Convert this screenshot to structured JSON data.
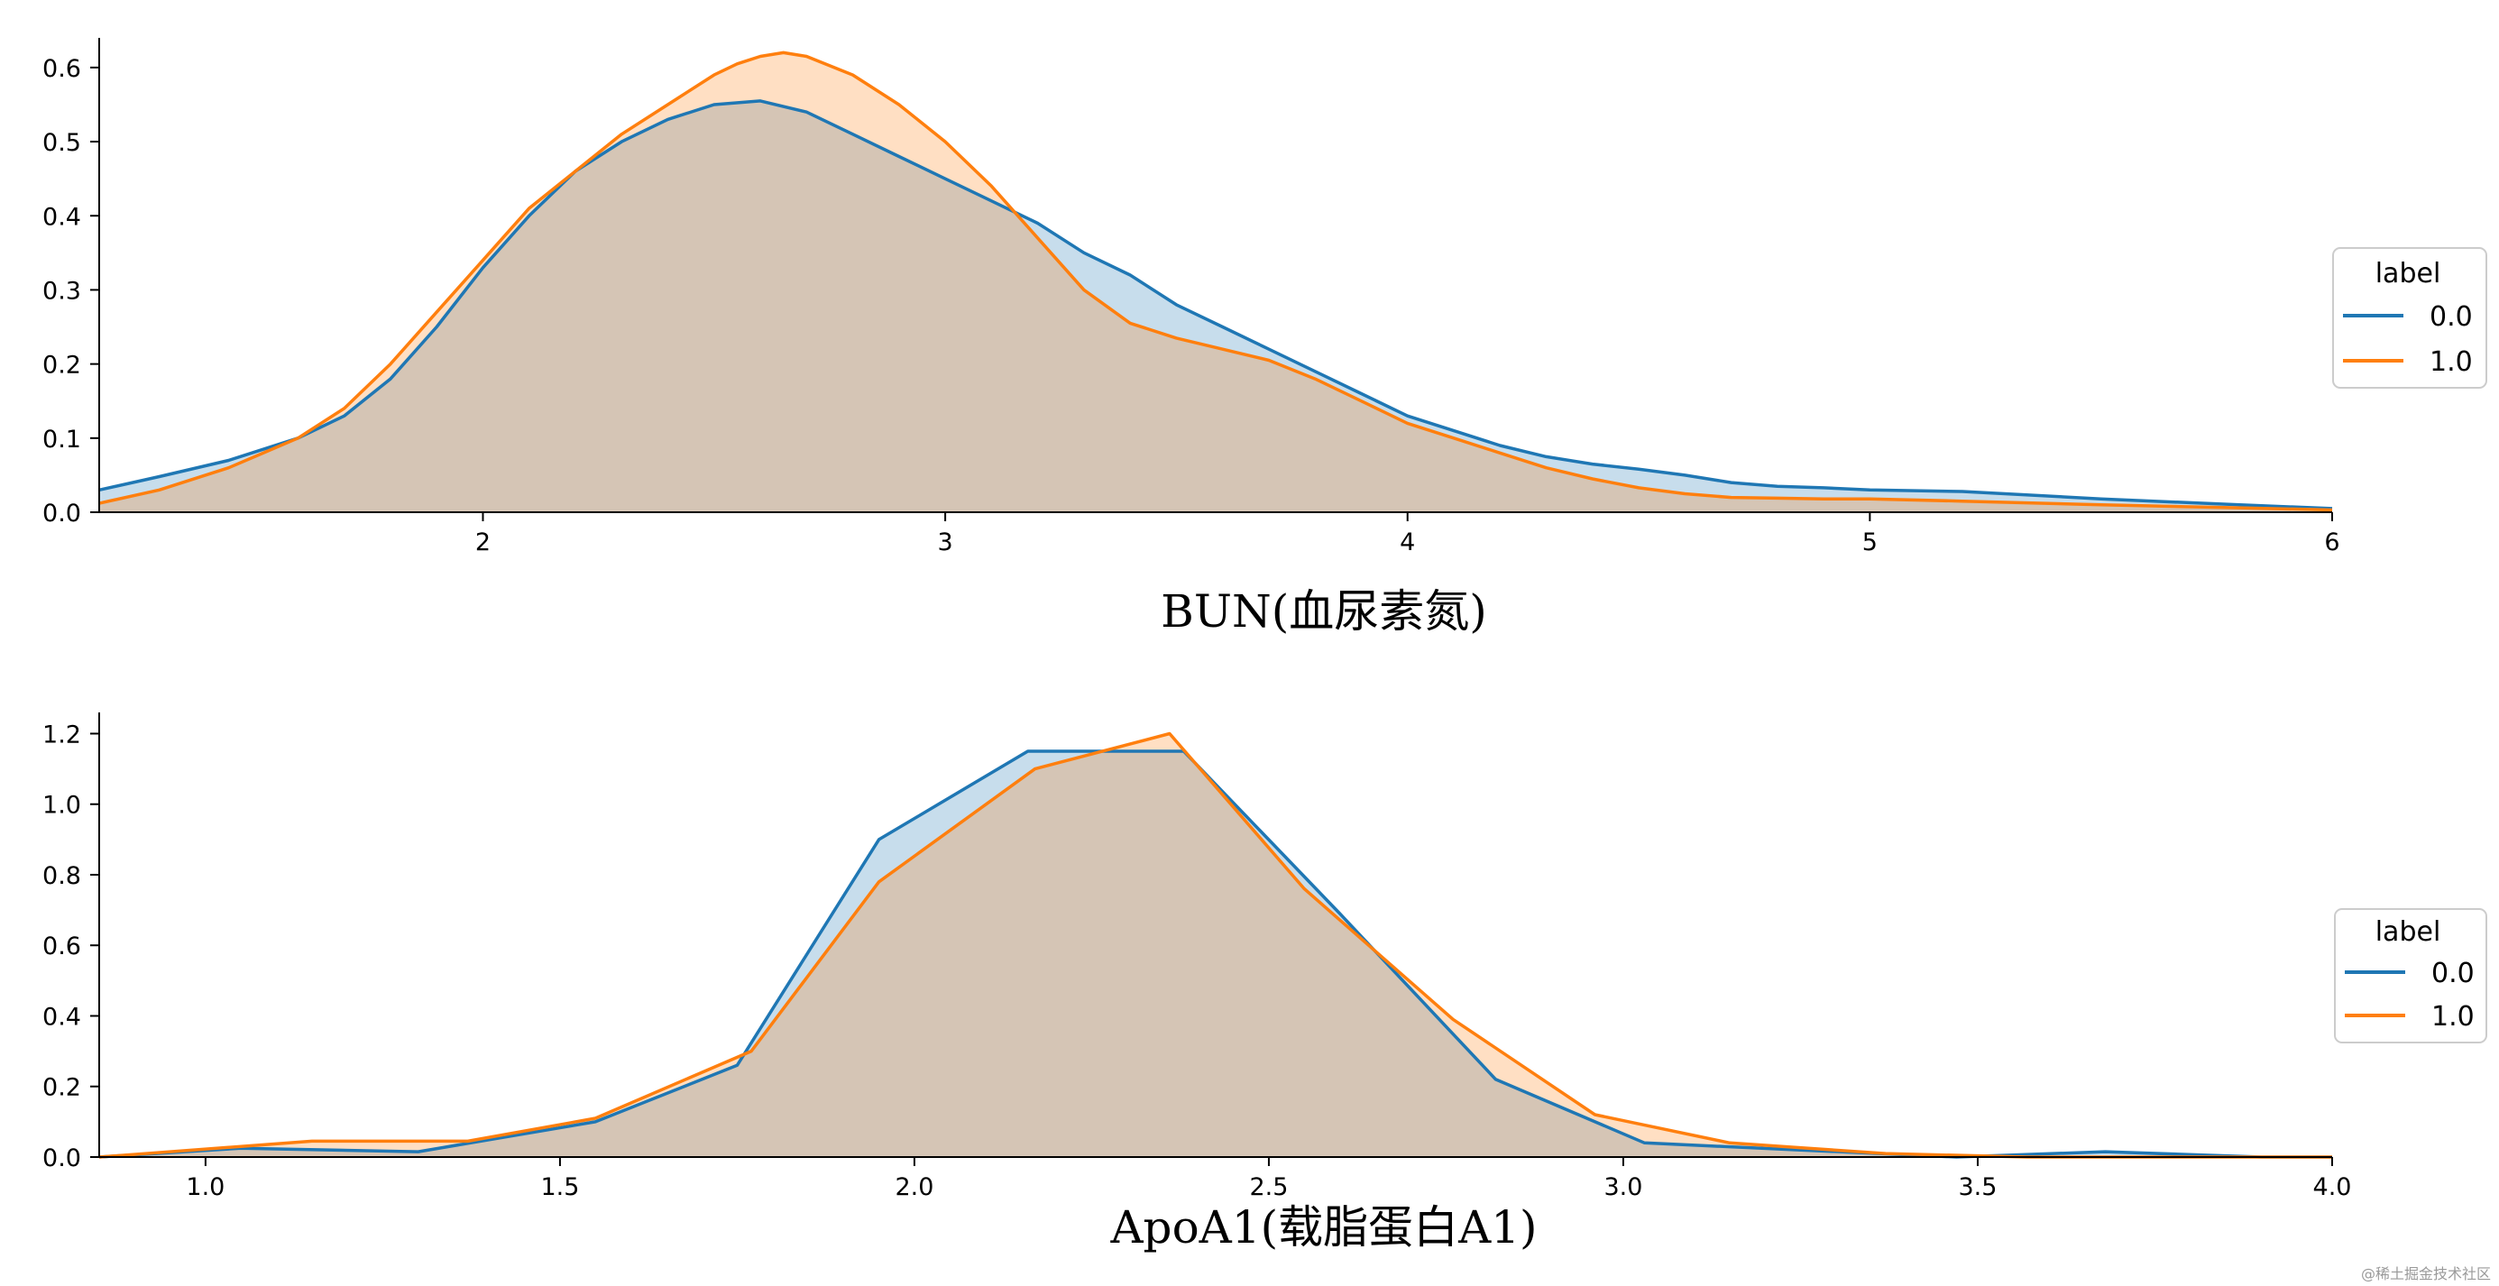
{
  "colors": {
    "series0": "#1f77b4",
    "series1": "#ff7f0e"
  },
  "watermark": "@稀土掘金技术社区",
  "chart_data": [
    {
      "type": "area",
      "xlabel": "BUN(血尿素氮)",
      "ylabel": "",
      "xlim": [
        1.17,
        6.0
      ],
      "ylim": [
        0,
        0.64
      ],
      "xticks": [
        2,
        3,
        4,
        5,
        6
      ],
      "xtick_labels": [
        "2",
        "3",
        "4",
        "5",
        "6"
      ],
      "yticks": [
        0.0,
        0.1,
        0.2,
        0.3,
        0.4,
        0.5,
        0.6
      ],
      "ytick_labels": [
        "0.0",
        "0.1",
        "0.2",
        "0.3",
        "0.4",
        "0.5",
        "0.6"
      ],
      "grid": false,
      "legend": {
        "title": "label",
        "position": "right",
        "entries": [
          "0.0",
          "1.0"
        ]
      },
      "series": [
        {
          "name": "0.0",
          "x": [
            1.17,
            1.3,
            1.45,
            1.6,
            1.7,
            1.8,
            1.9,
            2.0,
            2.1,
            2.2,
            2.3,
            2.4,
            2.5,
            2.6,
            2.7,
            2.8,
            2.9,
            3.0,
            3.1,
            3.2,
            3.3,
            3.4,
            3.5,
            3.6,
            3.7,
            3.8,
            3.9,
            4.0,
            4.1,
            4.2,
            4.3,
            4.4,
            4.5,
            4.6,
            4.7,
            4.8,
            4.9,
            5.0,
            5.2,
            5.5,
            5.8,
            6.0
          ],
          "y": [
            0.03,
            0.048,
            0.07,
            0.1,
            0.13,
            0.18,
            0.25,
            0.33,
            0.4,
            0.46,
            0.5,
            0.53,
            0.55,
            0.555,
            0.54,
            0.51,
            0.48,
            0.45,
            0.42,
            0.39,
            0.35,
            0.32,
            0.28,
            0.25,
            0.22,
            0.19,
            0.16,
            0.13,
            0.11,
            0.09,
            0.075,
            0.065,
            0.058,
            0.05,
            0.04,
            0.035,
            0.033,
            0.03,
            0.028,
            0.018,
            0.01,
            0.005
          ]
        },
        {
          "name": "1.0",
          "x": [
            1.17,
            1.3,
            1.45,
            1.6,
            1.7,
            1.8,
            1.9,
            2.0,
            2.1,
            2.2,
            2.3,
            2.4,
            2.5,
            2.55,
            2.6,
            2.65,
            2.7,
            2.8,
            2.9,
            3.0,
            3.1,
            3.2,
            3.3,
            3.4,
            3.5,
            3.6,
            3.7,
            3.8,
            3.9,
            4.0,
            4.1,
            4.2,
            4.3,
            4.4,
            4.5,
            4.6,
            4.7,
            4.8,
            4.9,
            5.0,
            5.2,
            5.5,
            5.8,
            6.0
          ],
          "y": [
            0.012,
            0.03,
            0.06,
            0.1,
            0.14,
            0.2,
            0.27,
            0.34,
            0.41,
            0.46,
            0.51,
            0.55,
            0.59,
            0.605,
            0.615,
            0.62,
            0.615,
            0.59,
            0.55,
            0.5,
            0.44,
            0.37,
            0.3,
            0.255,
            0.235,
            0.22,
            0.205,
            0.18,
            0.15,
            0.12,
            0.1,
            0.08,
            0.06,
            0.045,
            0.033,
            0.025,
            0.02,
            0.019,
            0.018,
            0.018,
            0.015,
            0.01,
            0.006,
            0.003
          ]
        }
      ]
    },
    {
      "type": "area",
      "xlabel": "ApoA1(载脂蛋白A1)",
      "ylabel": "",
      "xlim": [
        0.85,
        4.0
      ],
      "ylim": [
        0,
        1.26
      ],
      "xticks": [
        1.0,
        1.5,
        2.0,
        2.5,
        3.0,
        3.5,
        4.0
      ],
      "xtick_labels": [
        "1.0",
        "1.5",
        "2.0",
        "2.5",
        "3.0",
        "3.5",
        "4.0"
      ],
      "yticks": [
        0.0,
        0.2,
        0.4,
        0.6,
        0.8,
        1.0,
        1.2
      ],
      "ytick_labels": [
        "0.0",
        "0.2",
        "0.4",
        "0.6",
        "0.8",
        "1.0",
        "1.2"
      ],
      "grid": false,
      "legend": {
        "title": "label",
        "position": "right",
        "entries": [
          "0.0",
          "1.0"
        ]
      },
      "series": [
        {
          "name": "0.0",
          "x": [
            0.85,
            1.05,
            1.3,
            1.55,
            1.75,
            1.95,
            2.16,
            2.38,
            2.6,
            2.82,
            3.03,
            3.25,
            3.47,
            3.68,
            3.9,
            4.0
          ],
          "y": [
            0.0,
            0.025,
            0.015,
            0.1,
            0.26,
            0.9,
            1.15,
            1.15,
            0.69,
            0.22,
            0.04,
            0.02,
            0.0,
            0.015,
            0.0,
            0.0
          ]
        },
        {
          "name": "1.0",
          "x": [
            0.85,
            1.15,
            1.37,
            1.55,
            1.77,
            1.95,
            2.17,
            2.36,
            2.55,
            2.76,
            2.96,
            3.15,
            3.37,
            3.57,
            3.78,
            4.0
          ],
          "y": [
            0.0,
            0.045,
            0.045,
            0.11,
            0.3,
            0.78,
            1.1,
            1.2,
            0.76,
            0.39,
            0.12,
            0.04,
            0.01,
            0.0,
            0.0,
            0.0
          ]
        }
      ]
    }
  ]
}
